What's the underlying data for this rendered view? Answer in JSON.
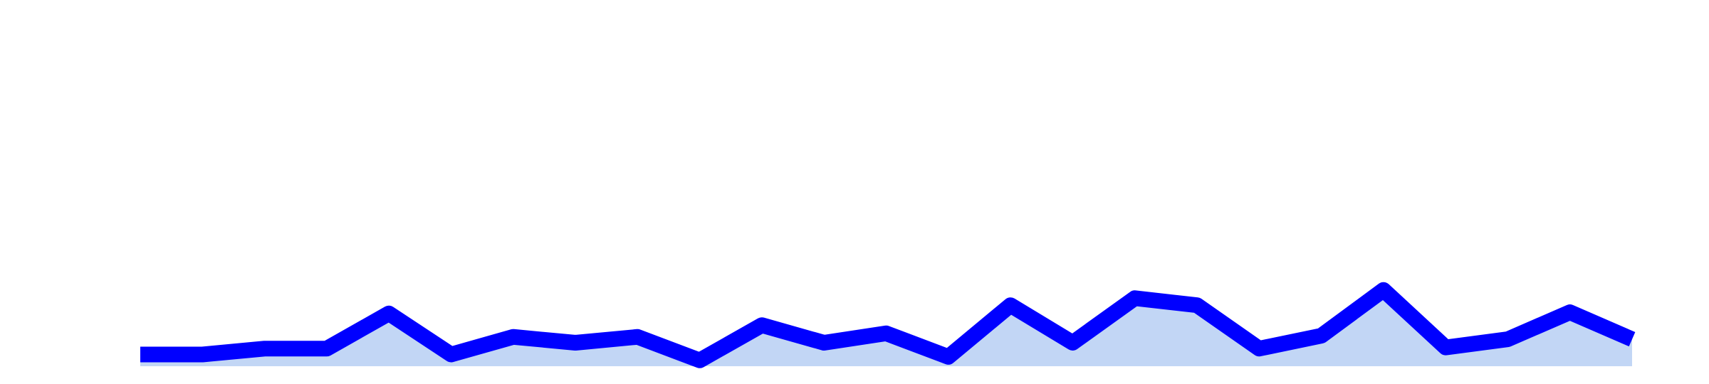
{
  "chart_data": {
    "type": "area",
    "title": "",
    "xlabel": "",
    "ylabel": "",
    "x": [
      1,
      2,
      3,
      4,
      5,
      6,
      7,
      8,
      9,
      10,
      11,
      12,
      13,
      14,
      15,
      16,
      17,
      18,
      19,
      20,
      21,
      22,
      23,
      24,
      25
    ],
    "series": [
      {
        "values": [
          1.0,
          1.0,
          1.5,
          1.5,
          4.5,
          1.0,
          2.5,
          2.0,
          2.5,
          0.5,
          3.5,
          2.0,
          2.8,
          0.8,
          5.2,
          2.0,
          5.8,
          5.2,
          1.5,
          2.6,
          6.5,
          1.6,
          2.3,
          4.6,
          2.3
        ]
      }
    ],
    "ylim": [
      0,
      30
    ],
    "grid": false,
    "legend": "none"
  },
  "colors": {
    "line": "#0000ff",
    "fill": "#c2d6f5",
    "background": "#ffffff"
  }
}
